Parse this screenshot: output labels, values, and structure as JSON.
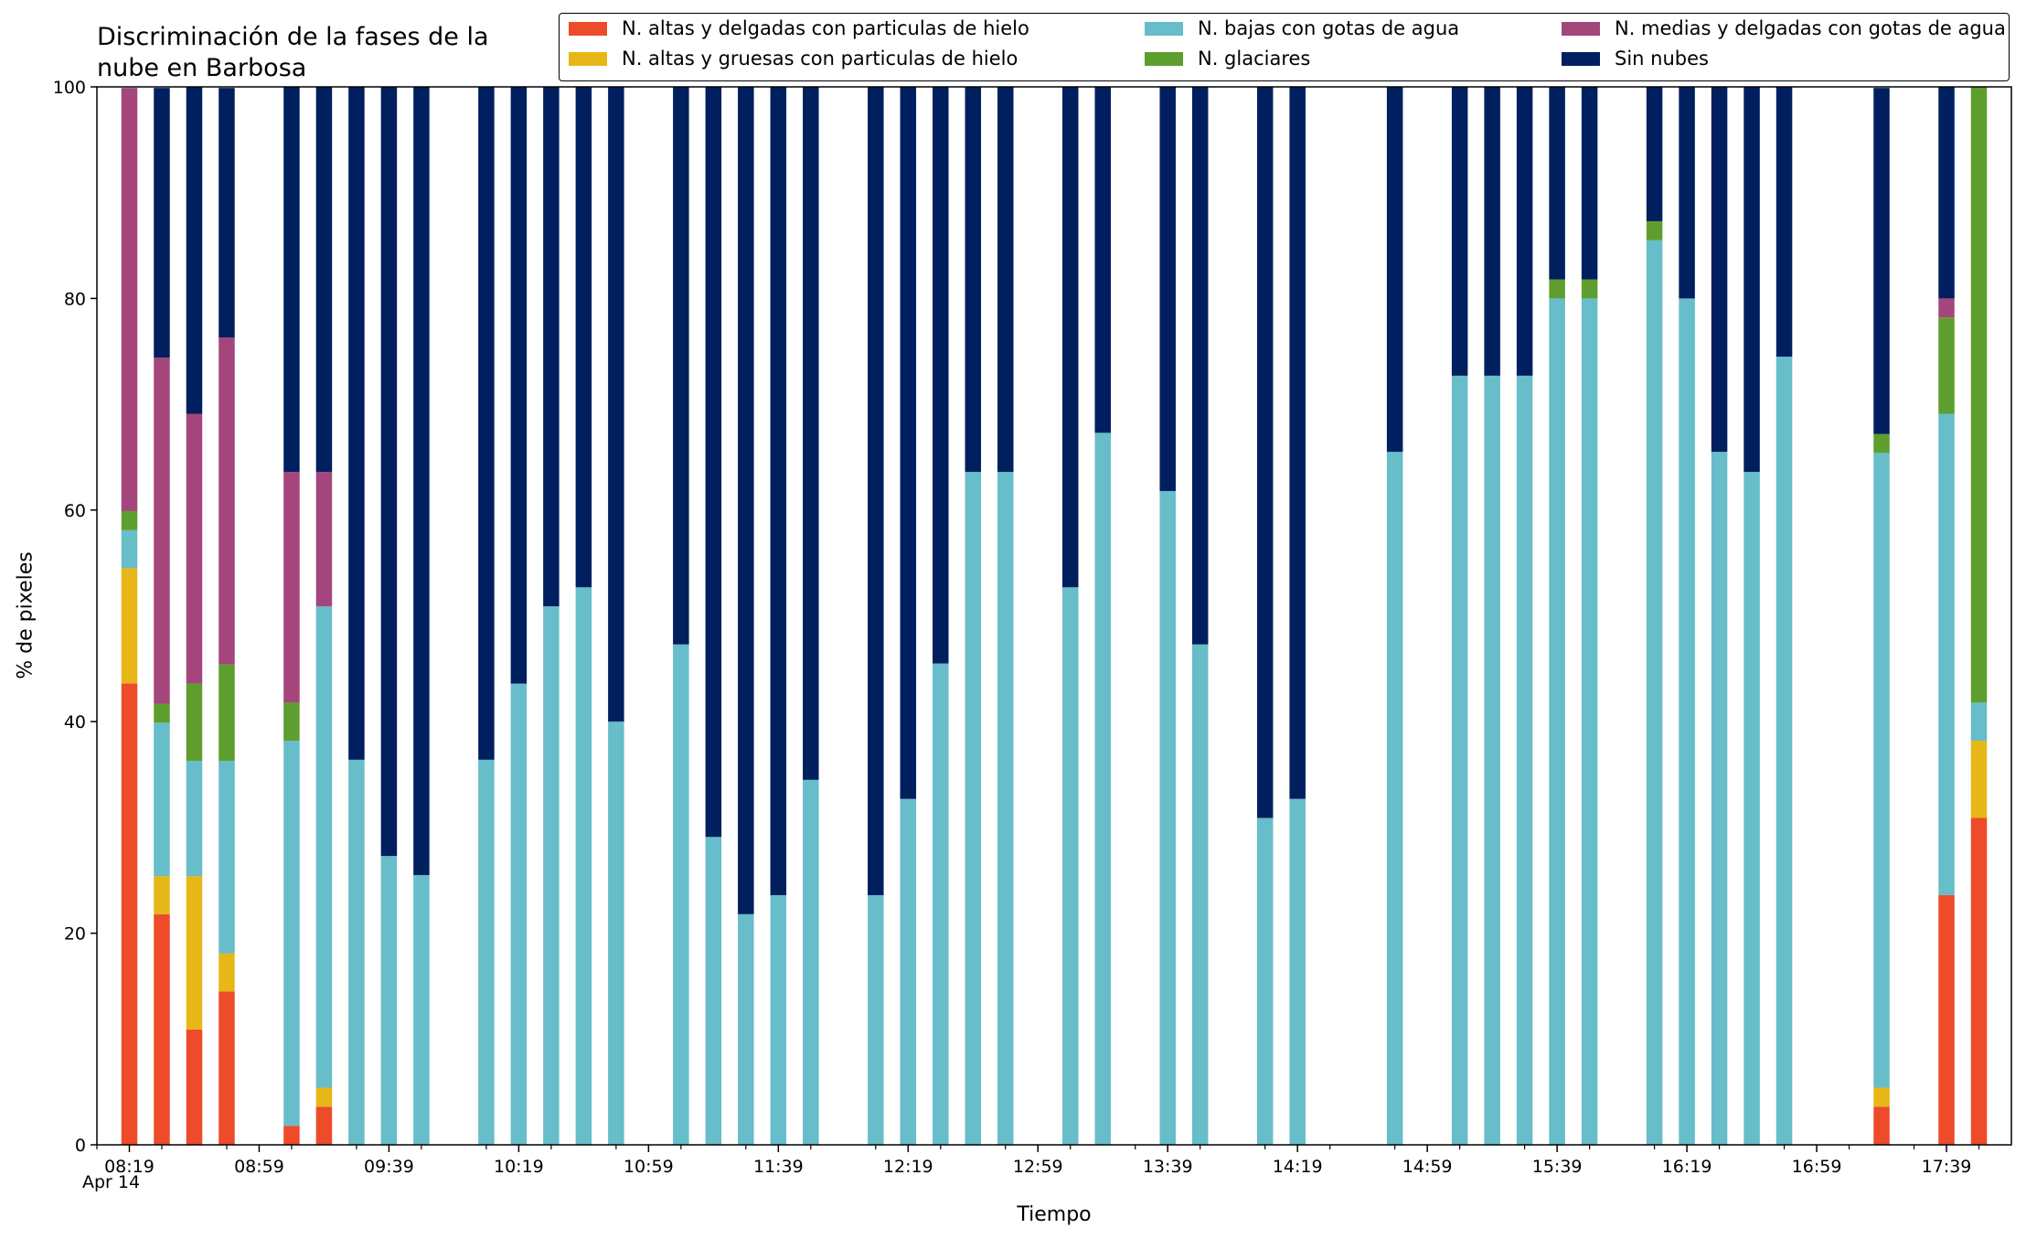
{
  "chart_data": {
    "type": "bar",
    "stacked": true,
    "title": "Discriminación de la fases de la\nnube en Barbosa",
    "xlabel": "Tiempo",
    "ylabel": "% de pixeles",
    "ylim": [
      0,
      100
    ],
    "yticks": [
      0,
      20,
      40,
      60,
      80,
      100
    ],
    "xticks": [
      "08:19",
      "08:59",
      "09:39",
      "10:19",
      "10:59",
      "11:39",
      "12:19",
      "12:59",
      "13:39",
      "14:19",
      "14:59",
      "15:39",
      "16:19",
      "16:59",
      "17:39"
    ],
    "date_label": "Apr 14",
    "legend_position": "top-right",
    "categories": [
      "08:19",
      "08:29",
      "08:39",
      "08:49",
      "09:09",
      "09:19",
      "09:29",
      "09:39",
      "09:49",
      "10:09",
      "10:19",
      "10:29",
      "10:39",
      "10:49",
      "11:09",
      "11:19",
      "11:29",
      "11:39",
      "11:49",
      "12:09",
      "12:19",
      "12:29",
      "12:39",
      "12:49",
      "13:09",
      "13:19",
      "13:39",
      "13:49",
      "14:09",
      "14:19",
      "14:49",
      "15:09",
      "15:19",
      "15:29",
      "15:39",
      "15:49",
      "16:09",
      "16:19",
      "16:29",
      "16:39",
      "16:49",
      "17:19",
      "17:39",
      "17:49"
    ],
    "series": [
      {
        "name": "N. altas y delgadas con particulas de hielo",
        "color": "#ee4b2b",
        "values": [
          43.6,
          21.8,
          10.9,
          14.5,
          1.8,
          3.6,
          0,
          0,
          0,
          0,
          0,
          0,
          0,
          0,
          0,
          0,
          0,
          0,
          0,
          0,
          0,
          0,
          0,
          0,
          0,
          0,
          0,
          0,
          0,
          0,
          0,
          0,
          0,
          0,
          0,
          0,
          0,
          0,
          0,
          0,
          0,
          3.6,
          23.6,
          30.9
        ]
      },
      {
        "name": "N. altas y gruesas con particulas de hielo",
        "color": "#e6b717",
        "values": [
          10.9,
          3.6,
          14.5,
          3.6,
          0,
          1.8,
          0,
          0,
          0,
          0,
          0,
          0,
          0,
          0,
          0,
          0,
          0,
          0,
          0,
          0,
          0,
          0,
          0,
          0,
          0,
          0,
          0,
          0,
          0,
          0,
          0,
          0,
          0,
          0,
          0,
          0,
          0,
          0,
          0,
          0,
          0,
          1.8,
          0,
          7.3
        ]
      },
      {
        "name": "N. bajas con gotas de agua",
        "color": "#67bdc9",
        "values": [
          3.6,
          14.5,
          10.9,
          18.2,
          36.4,
          45.5,
          36.4,
          27.3,
          25.5,
          36.4,
          43.6,
          50.9,
          52.7,
          40.0,
          47.3,
          29.1,
          21.8,
          23.6,
          34.5,
          23.6,
          32.7,
          45.5,
          63.6,
          63.6,
          52.7,
          67.3,
          61.8,
          47.3,
          30.9,
          32.7,
          65.5,
          72.7,
          72.7,
          72.7,
          80.0,
          80.0,
          85.5,
          80.0,
          65.5,
          63.6,
          74.5,
          60.0,
          45.5,
          3.6
        ]
      },
      {
        "name": "N. glaciares",
        "color": "#5e9e2e",
        "values": [
          1.8,
          1.8,
          7.3,
          9.1,
          3.6,
          0,
          0,
          0,
          0,
          0,
          0,
          0,
          0,
          0,
          0,
          0,
          0,
          0,
          0,
          0,
          0,
          0,
          0,
          0,
          0,
          0,
          0,
          0,
          0,
          0,
          0,
          0,
          0,
          0,
          1.8,
          1.8,
          1.8,
          0,
          0,
          0,
          0,
          1.8,
          9.1,
          58.2
        ]
      },
      {
        "name": "N. medias y delgadas con gotas de agua",
        "color": "#a4467c",
        "values": [
          40.0,
          32.7,
          25.5,
          30.9,
          21.8,
          12.7,
          0,
          0,
          0,
          0,
          0,
          0,
          0,
          0,
          0,
          0,
          0,
          0,
          0,
          0,
          0,
          0,
          0,
          0,
          0,
          0,
          0,
          0,
          0,
          0,
          0,
          0,
          0,
          0,
          0,
          0,
          0,
          0,
          0,
          0,
          0,
          0,
          1.8,
          0
        ]
      },
      {
        "name": "Sin nubes",
        "color": "#001f5e",
        "values": [
          0,
          25.5,
          30.9,
          23.6,
          36.4,
          36.4,
          63.6,
          72.7,
          74.5,
          63.6,
          56.4,
          49.1,
          47.3,
          60.0,
          52.7,
          70.9,
          78.2,
          76.4,
          65.5,
          76.4,
          67.3,
          54.5,
          36.4,
          36.4,
          47.3,
          32.7,
          38.2,
          52.7,
          69.1,
          67.3,
          34.5,
          27.3,
          27.3,
          27.3,
          18.2,
          18.2,
          12.7,
          20.0,
          34.5,
          36.4,
          25.5,
          32.7,
          20.0,
          0
        ]
      }
    ]
  }
}
